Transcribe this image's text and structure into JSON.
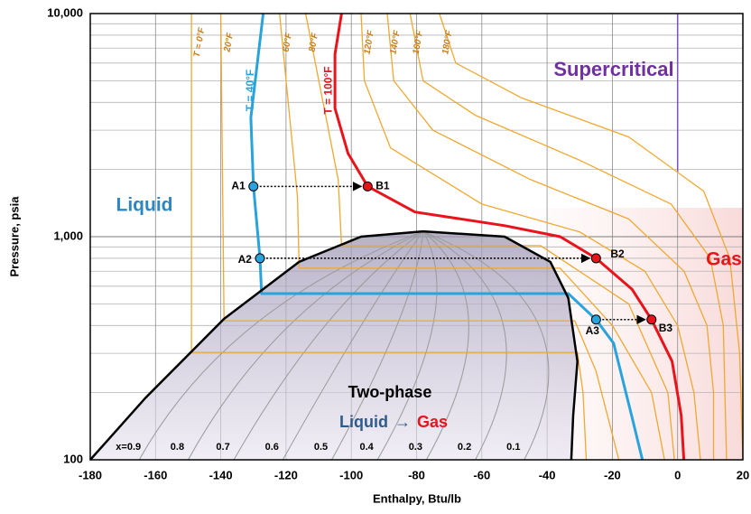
{
  "chart_data": {
    "type": "line",
    "x_label": "Enthalpy, Btu/lb",
    "y_label": "Pressure, psia",
    "xlim": [
      -180,
      20
    ],
    "xticks": [
      -180,
      -160,
      -140,
      -120,
      -100,
      -80,
      -60,
      -40,
      -20,
      0,
      20
    ],
    "ylim": [
      100,
      10000
    ],
    "log_y": true,
    "yticks": [
      100,
      {
        "value": 1000,
        "label": "1,000"
      },
      {
        "value": 10000,
        "label": "10,000"
      }
    ],
    "yminorticks": [
      200,
      300,
      400,
      500,
      600,
      700,
      800,
      900,
      2000,
      3000,
      4000,
      5000,
      6000,
      7000,
      8000,
      9000
    ],
    "grid": true,
    "saturation_dome": {
      "color": "#000000",
      "x": [
        -180,
        -163,
        -139,
        -116,
        -97,
        -78,
        -53,
        -39,
        -33.5,
        -30.7,
        -32,
        -32.6
      ],
      "values": [
        100,
        190,
        428,
        771,
        1000,
        1057,
        1000,
        771,
        531,
        276,
        158,
        100
      ]
    },
    "supercritical_boundary": {
      "color": "#7b52c2",
      "x": [
        0,
        0
      ],
      "values": [
        10000,
        1950
      ]
    },
    "quality_lines": {
      "color": "#9a9a9a",
      "series": [
        {
          "name": "x=0.9",
          "x": [
            -78,
            -130,
            -165
          ],
          "values": [
            1057,
            400,
            100
          ]
        },
        {
          "name": "0.8",
          "x": [
            -78,
            -119,
            -150
          ],
          "values": [
            1057,
            400,
            100
          ]
        },
        {
          "name": "0.7",
          "x": [
            -78,
            -108,
            -136
          ],
          "values": [
            1057,
            400,
            100
          ]
        },
        {
          "name": "0.6",
          "x": [
            -78,
            -97,
            -121
          ],
          "values": [
            1057,
            400,
            100
          ]
        },
        {
          "name": "0.5",
          "x": [
            -78,
            -86,
            -106
          ],
          "values": [
            1057,
            400,
            100
          ]
        },
        {
          "name": "0.4",
          "x": [
            -78,
            -75,
            -92
          ],
          "values": [
            1057,
            400,
            100
          ]
        },
        {
          "name": "0.3",
          "x": [
            -78,
            -64,
            -77
          ],
          "values": [
            1057,
            400,
            100
          ]
        },
        {
          "name": "0.2",
          "x": [
            -78,
            -53.4,
            -62
          ],
          "values": [
            1057,
            400,
            100
          ]
        },
        {
          "name": "0.1",
          "x": [
            -78,
            -42.5,
            -47
          ],
          "values": [
            1057,
            400,
            100
          ]
        }
      ]
    },
    "series": [
      {
        "name": "T = 0°F",
        "color": "#f0a830",
        "width": 1.3,
        "x": [
          -149,
          -149,
          -30.7,
          -29,
          -28
        ],
        "values": [
          10000,
          303,
          303,
          200,
          100
        ]
      },
      {
        "name": "20°F",
        "color": "#f0a830",
        "width": 1.3,
        "x": [
          -140,
          -139,
          -31.5,
          -25,
          -18
        ],
        "values": [
          10000,
          420,
          420,
          250,
          100
        ]
      },
      {
        "name": "T = 40°F",
        "color": "#29a3dc",
        "width": 3,
        "x": [
          -127,
          -130.8,
          -130,
          -128,
          -127.5,
          -33.5,
          -25,
          -19.6,
          -14.1,
          -10.8
        ],
        "values": [
          10000,
          3420,
          1680,
          800,
          556,
          556,
          425,
          333,
          158,
          100
        ]
      },
      {
        "name": "60°F",
        "color": "#f0a830",
        "width": 1.3,
        "x": [
          -122,
          -116.5,
          -116,
          -36,
          -20,
          -8,
          -4
        ],
        "values": [
          10000,
          1500,
          722,
          722,
          400,
          200,
          100
        ]
      },
      {
        "name": "80°F",
        "color": "#f0a830",
        "width": 1.3,
        "x": [
          -114,
          -104,
          -103,
          -42,
          -15,
          -3,
          -1
        ],
        "values": [
          10000,
          1800,
          912,
          912,
          500,
          200,
          100
        ]
      },
      {
        "name": "T = 100°F",
        "color": "#e8141c",
        "width": 3,
        "x": [
          -103,
          -105,
          -105,
          -101,
          -95,
          -80.5,
          -53,
          -36,
          -25,
          -14,
          -8,
          -1.7,
          1.1,
          1.9
        ],
        "values": [
          10000,
          6580,
          3760,
          2360,
          1680,
          1290,
          1120,
          1000,
          800,
          582,
          425,
          276,
          158,
          100
        ]
      },
      {
        "name": "120°F",
        "color": "#f0a830",
        "width": 1.3,
        "x": [
          -97,
          -96,
          -88,
          -60,
          -30,
          -10,
          0,
          5,
          7
        ],
        "values": [
          10000,
          5000,
          2500,
          1400,
          1050,
          700,
          400,
          200,
          100
        ]
      },
      {
        "name": "140°F",
        "color": "#f0a830",
        "width": 1.3,
        "x": [
          -89,
          -87,
          -75,
          -45,
          -15,
          2,
          9,
          11,
          11
        ],
        "values": [
          10000,
          5000,
          3000,
          1800,
          1200,
          700,
          400,
          200,
          100
        ]
      },
      {
        "name": "160°F",
        "color": "#f0a830",
        "width": 1.3,
        "x": [
          -82,
          -78,
          -62,
          -30,
          -2,
          10,
          14,
          15
        ],
        "values": [
          10000,
          5000,
          3500,
          2200,
          1400,
          800,
          400,
          100
        ]
      },
      {
        "name": "180°F",
        "color": "#f0a830",
        "width": 1.3,
        "x": [
          -73,
          -68,
          -48,
          -15,
          8,
          16,
          19,
          20
        ],
        "values": [
          10000,
          6000,
          4200,
          2800,
          1600,
          800,
          300,
          100
        ]
      }
    ],
    "points": [
      {
        "name": "A1",
        "color": "#29a3dc",
        "x": -130,
        "value": 1680
      },
      {
        "name": "B1",
        "color": "#e8141c",
        "x": -95,
        "value": 1680
      },
      {
        "name": "A2",
        "color": "#29a3dc",
        "x": -128,
        "value": 800
      },
      {
        "name": "B2",
        "color": "#e8141c",
        "x": -25,
        "value": 800
      },
      {
        "name": "A3",
        "color": "#29a3dc",
        "x": -25,
        "value": 425
      },
      {
        "name": "B3",
        "color": "#e8141c",
        "x": -8,
        "value": 425
      }
    ],
    "annotations": [
      {
        "text": "Liquid",
        "color": "#2e86c1"
      },
      {
        "text": "Supercritical",
        "color": "#7030a0"
      },
      {
        "text": "Gas",
        "color": "#e8141c"
      },
      {
        "text": "Two-phase",
        "color": "#000000"
      },
      {
        "text": "Liquid",
        "color": "#2e5b8a"
      },
      {
        "text": "→",
        "color": "#2e5b8a"
      },
      {
        "text": "Gas",
        "color": "#e8141c"
      }
    ]
  }
}
